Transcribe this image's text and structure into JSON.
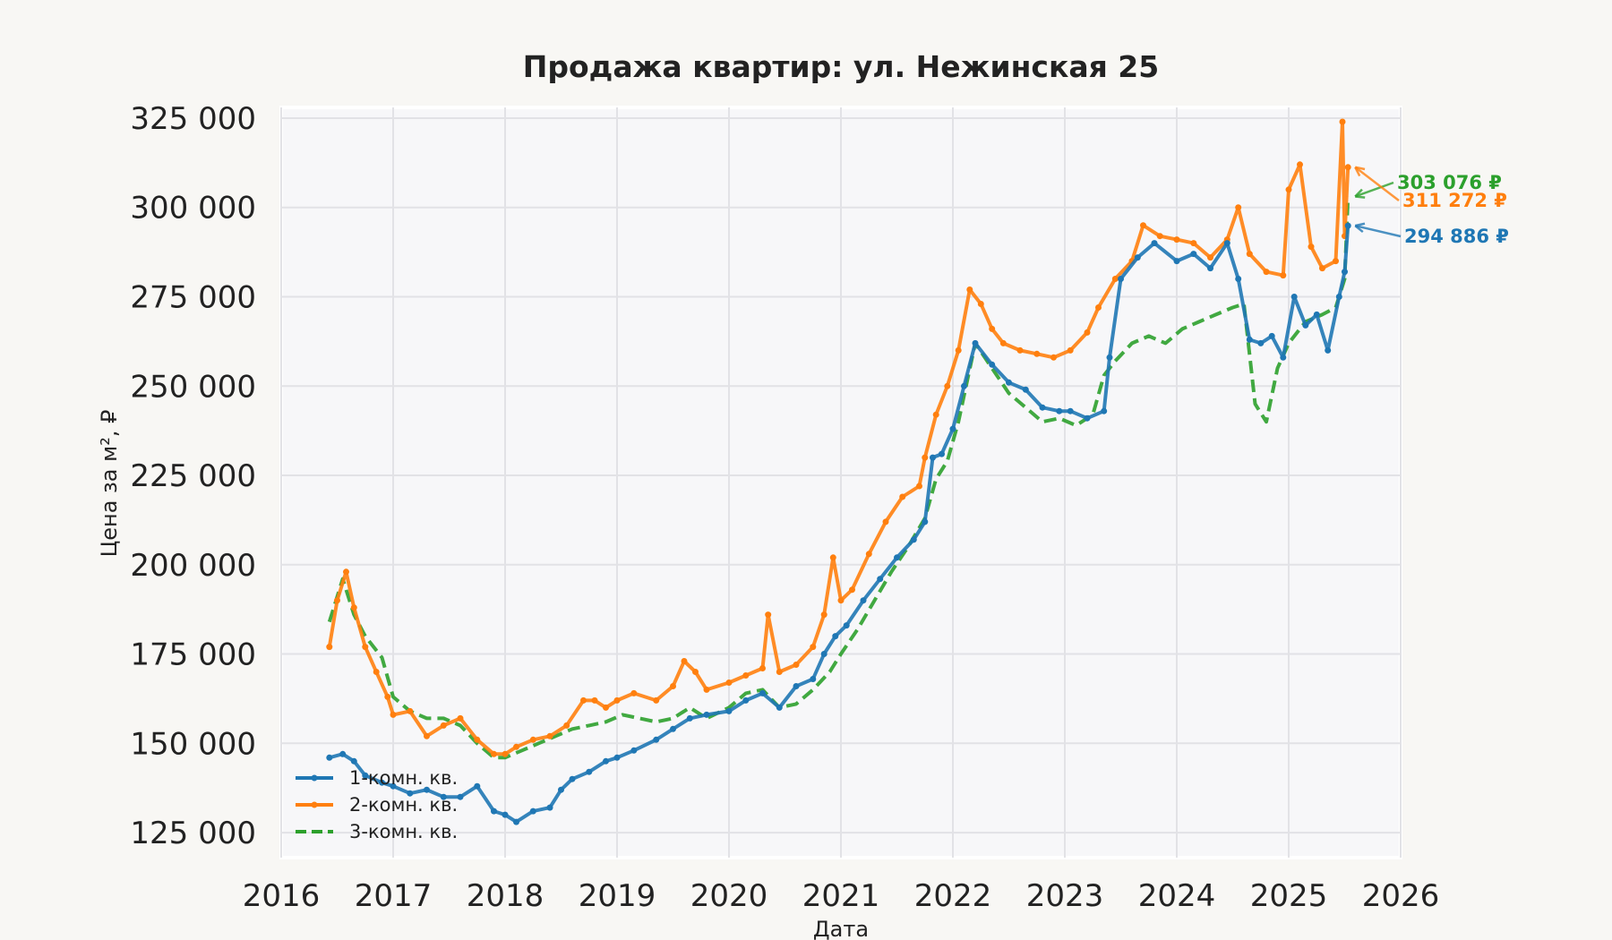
{
  "chart_data": {
    "type": "line",
    "title": "Продажа квартир: ул. Нежинская 25",
    "xlabel": "Дата",
    "ylabel": "Цена за м², ₽",
    "xlim": [
      2016,
      2026
    ],
    "ylim": [
      118000,
      328000
    ],
    "x_ticks": [
      "2016",
      "2017",
      "2018",
      "2019",
      "2020",
      "2021",
      "2022",
      "2023",
      "2024",
      "2025",
      "2026"
    ],
    "y_ticks": [
      "125 000",
      "150 000",
      "175 000",
      "200 000",
      "225 000",
      "250 000",
      "275 000",
      "300 000",
      "325 000"
    ],
    "y_tick_values": [
      125000,
      150000,
      175000,
      200000,
      225000,
      250000,
      275000,
      300000,
      325000
    ],
    "grid": true,
    "legend_position": "lower-left",
    "series": [
      {
        "name": "1-комн. кв.",
        "color": "#1f77b4",
        "style": "solid-dots",
        "end_label": "294 886 ₽",
        "x": [
          2016.43,
          2016.55,
          2016.65,
          2016.75,
          2016.9,
          2017.0,
          2017.15,
          2017.3,
          2017.45,
          2017.6,
          2017.75,
          2017.9,
          2018.0,
          2018.1,
          2018.25,
          2018.4,
          2018.5,
          2018.6,
          2018.75,
          2018.9,
          2019.0,
          2019.15,
          2019.35,
          2019.5,
          2019.65,
          2019.8,
          2020.0,
          2020.15,
          2020.3,
          2020.45,
          2020.6,
          2020.75,
          2020.85,
          2020.95,
          2021.05,
          2021.2,
          2021.35,
          2021.5,
          2021.65,
          2021.75,
          2021.82,
          2021.9,
          2022.0,
          2022.1,
          2022.2,
          2022.35,
          2022.5,
          2022.65,
          2022.8,
          2022.95,
          2023.05,
          2023.2,
          2023.35,
          2023.4,
          2023.5,
          2023.65,
          2023.8,
          2024.0,
          2024.15,
          2024.3,
          2024.45,
          2024.55,
          2024.65,
          2024.75,
          2024.85,
          2024.95,
          2025.05,
          2025.15,
          2025.25,
          2025.35,
          2025.45,
          2025.5,
          2025.53
        ],
        "values": [
          146000,
          147000,
          145000,
          141000,
          139000,
          138000,
          136000,
          137000,
          135000,
          135000,
          138000,
          131000,
          130000,
          128000,
          131000,
          132000,
          137000,
          140000,
          142000,
          145000,
          146000,
          148000,
          151000,
          154000,
          157000,
          158000,
          159000,
          162000,
          164000,
          160000,
          166000,
          168000,
          175000,
          180000,
          183000,
          190000,
          196000,
          202000,
          207000,
          212000,
          230000,
          231000,
          238000,
          250000,
          262000,
          256000,
          251000,
          249000,
          244000,
          243000,
          243000,
          241000,
          243000,
          258000,
          280000,
          286000,
          290000,
          285000,
          287000,
          283000,
          290000,
          280000,
          263000,
          262000,
          264000,
          258000,
          275000,
          267000,
          270000,
          260000,
          275000,
          282000,
          294886
        ]
      },
      {
        "name": "2-комн. кв.",
        "color": "#ff7f0e",
        "style": "solid-dots",
        "end_label": "311 272 ₽",
        "x": [
          2016.43,
          2016.5,
          2016.58,
          2016.65,
          2016.75,
          2016.85,
          2016.95,
          2017.0,
          2017.15,
          2017.3,
          2017.45,
          2017.6,
          2017.75,
          2017.9,
          2018.0,
          2018.1,
          2018.25,
          2018.4,
          2018.55,
          2018.7,
          2018.8,
          2018.9,
          2019.0,
          2019.15,
          2019.35,
          2019.5,
          2019.6,
          2019.7,
          2019.8,
          2020.0,
          2020.15,
          2020.3,
          2020.35,
          2020.45,
          2020.6,
          2020.75,
          2020.85,
          2020.93,
          2021.0,
          2021.1,
          2021.25,
          2021.4,
          2021.55,
          2021.7,
          2021.75,
          2021.85,
          2021.95,
          2022.05,
          2022.15,
          2022.25,
          2022.35,
          2022.45,
          2022.6,
          2022.75,
          2022.9,
          2023.05,
          2023.2,
          2023.3,
          2023.45,
          2023.6,
          2023.7,
          2023.85,
          2024.0,
          2024.15,
          2024.3,
          2024.45,
          2024.55,
          2024.65,
          2024.8,
          2024.95,
          2025.0,
          2025.1,
          2025.2,
          2025.3,
          2025.42,
          2025.48,
          2025.5,
          2025.53
        ],
        "values": [
          177000,
          190000,
          198000,
          188000,
          177000,
          170000,
          163000,
          158000,
          159000,
          152000,
          155000,
          157000,
          151000,
          147000,
          147000,
          149000,
          151000,
          152000,
          155000,
          162000,
          162000,
          160000,
          162000,
          164000,
          162000,
          166000,
          173000,
          170000,
          165000,
          167000,
          169000,
          171000,
          186000,
          170000,
          172000,
          177000,
          186000,
          202000,
          190000,
          193000,
          203000,
          212000,
          219000,
          222000,
          230000,
          242000,
          250000,
          260000,
          277000,
          273000,
          266000,
          262000,
          260000,
          259000,
          258000,
          260000,
          265000,
          272000,
          280000,
          285000,
          295000,
          292000,
          291000,
          290000,
          286000,
          291000,
          300000,
          287000,
          282000,
          281000,
          305000,
          312000,
          289000,
          283000,
          285000,
          324000,
          292000,
          311272
        ]
      },
      {
        "name": "3-комн. кв.",
        "color": "#2ca02c",
        "style": "dashed",
        "end_label": "303 076 ₽",
        "x": [
          2016.43,
          2016.55,
          2016.65,
          2016.75,
          2016.9,
          2017.0,
          2017.15,
          2017.3,
          2017.45,
          2017.6,
          2017.75,
          2017.9,
          2018.0,
          2018.15,
          2018.3,
          2018.45,
          2018.6,
          2018.75,
          2018.9,
          2019.05,
          2019.2,
          2019.35,
          2019.5,
          2019.65,
          2019.8,
          2020.0,
          2020.15,
          2020.3,
          2020.45,
          2020.6,
          2020.75,
          2020.9,
          2021.0,
          2021.15,
          2021.3,
          2021.45,
          2021.6,
          2021.75,
          2021.85,
          2021.95,
          2022.05,
          2022.2,
          2022.35,
          2022.5,
          2022.65,
          2022.8,
          2022.95,
          2023.1,
          2023.25,
          2023.35,
          2023.45,
          2023.6,
          2023.75,
          2023.9,
          2024.05,
          2024.2,
          2024.35,
          2024.5,
          2024.6,
          2024.7,
          2024.8,
          2024.9,
          2025.0,
          2025.15,
          2025.3,
          2025.42,
          2025.5,
          2025.53
        ],
        "values": [
          184000,
          196000,
          186000,
          180000,
          174000,
          163000,
          159000,
          157000,
          157000,
          155000,
          150000,
          146000,
          146000,
          148000,
          150000,
          152000,
          154000,
          155000,
          156000,
          158000,
          157000,
          156000,
          157000,
          160000,
          157000,
          160000,
          164000,
          165000,
          160000,
          161000,
          165000,
          170000,
          175000,
          182000,
          190000,
          198000,
          205000,
          213000,
          224000,
          229000,
          240000,
          262000,
          255000,
          248000,
          244000,
          240000,
          241000,
          239000,
          242000,
          253000,
          257000,
          262000,
          264000,
          262000,
          266000,
          268000,
          270000,
          272000,
          273000,
          245000,
          240000,
          255000,
          262000,
          268000,
          270000,
          272000,
          280000,
          303076
        ]
      }
    ]
  }
}
